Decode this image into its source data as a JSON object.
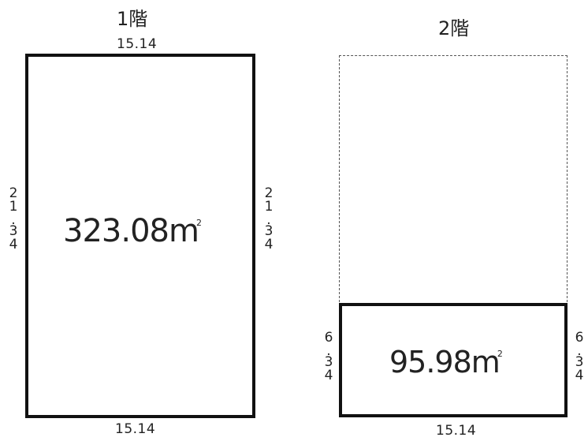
{
  "floor1": {
    "title": "1階",
    "top_dimension": "15.14",
    "bottom_dimension": "15.14",
    "left_dimension": "21.34",
    "right_dimension": "21.34",
    "area_value": "323.08",
    "area_unit": "m",
    "area_unit_sup": "2"
  },
  "floor2": {
    "title": "2階",
    "bottom_dimension": "15.14",
    "left_dimension": "6.34",
    "right_dimension": "6.34",
    "area_value": "95.98",
    "area_unit": "m",
    "area_unit_sup": "2"
  },
  "colors": {
    "outline": "#111111",
    "dashed_outline": "#555555",
    "text": "#222222"
  }
}
